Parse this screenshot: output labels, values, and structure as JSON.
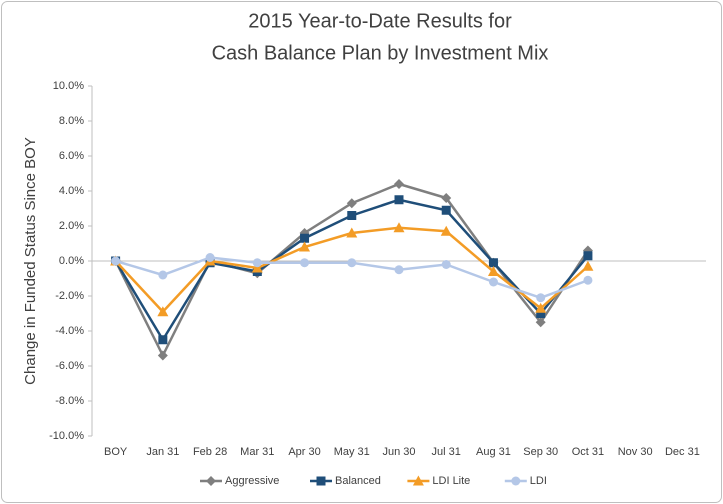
{
  "chart_data": {
    "type": "line",
    "title": [
      "2015 Year-to-Date Results for",
      "Cash Balance Plan by Investment Mix"
    ],
    "y_label": "Change in Funded Status Since BOY",
    "categories": [
      "BOY",
      "Jan 31",
      "Feb 28",
      "Mar 31",
      "Apr 30",
      "May 31",
      "Jun 30",
      "Jul 31",
      "Aug 31",
      "Sep 30",
      "Oct 31",
      "Nov 30",
      "Dec 31"
    ],
    "series": [
      {
        "name": "Aggressive",
        "color": "#7f7f7f",
        "marker": "diamond",
        "values": [
          0,
          -5.4,
          0,
          -0.7,
          1.6,
          3.3,
          4.4,
          3.6,
          -0.1,
          -3.5,
          0.6,
          null,
          null
        ]
      },
      {
        "name": "Balanced",
        "color": "#1f4e79",
        "marker": "square",
        "values": [
          0,
          -4.5,
          -0.1,
          -0.6,
          1.3,
          2.6,
          3.5,
          2.9,
          -0.1,
          -3.0,
          0.3,
          null,
          null
        ]
      },
      {
        "name": "LDI Lite",
        "color": "#f39c26",
        "marker": "triangle",
        "values": [
          0,
          -2.9,
          0,
          -0.4,
          0.8,
          1.6,
          1.9,
          1.7,
          -0.6,
          -2.7,
          -0.3,
          null,
          null
        ]
      },
      {
        "name": "LDI",
        "color": "#b4c7e7",
        "marker": "circle",
        "values": [
          0,
          -0.8,
          0.2,
          -0.1,
          -0.1,
          -0.1,
          -0.5,
          -0.2,
          -1.2,
          -2.1,
          -1.1,
          null,
          null
        ]
      }
    ],
    "ylim": [
      -10,
      10
    ],
    "yticks": [
      {
        "value": -10,
        "label": "-10.0%"
      },
      {
        "value": -8,
        "label": "-8.0%"
      },
      {
        "value": -6,
        "label": "-6.0%"
      },
      {
        "value": -4,
        "label": "-4.0%"
      },
      {
        "value": -2,
        "label": "-2.0%"
      },
      {
        "value": 0,
        "label": "0.0%"
      },
      {
        "value": 2,
        "label": "2.0%"
      },
      {
        "value": 4,
        "label": "4.0%"
      },
      {
        "value": 6,
        "label": "6.0%"
      },
      {
        "value": 8,
        "label": "8.0%"
      },
      {
        "value": 10,
        "label": "10.0%"
      }
    ],
    "legend": "bottom"
  }
}
